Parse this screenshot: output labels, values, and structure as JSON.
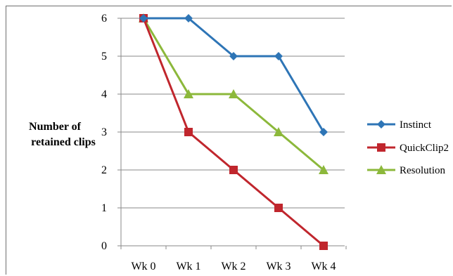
{
  "chart_data": {
    "type": "line",
    "title": "",
    "xlabel": "",
    "ylabel": [
      "Number of",
      "retained clips"
    ],
    "categories": [
      "Wk 0",
      "Wk 1",
      "Wk 2",
      "Wk 3",
      "Wk 4"
    ],
    "ylim": [
      0,
      6
    ],
    "yticks": [
      0,
      1,
      2,
      3,
      4,
      5,
      6
    ],
    "grid": true,
    "legend_position": "right",
    "series": [
      {
        "name": "Instinct",
        "color": "#2e75b6",
        "marker": "diamond",
        "values": [
          6,
          6,
          5,
          5,
          3
        ]
      },
      {
        "name": "QuickClip2",
        "color": "#c0262d",
        "marker": "square",
        "values": [
          6,
          3,
          2,
          1,
          0
        ]
      },
      {
        "name": "Resolution",
        "color": "#8cb83b",
        "marker": "triangle",
        "values": [
          6,
          4,
          4,
          3,
          2
        ]
      }
    ]
  }
}
